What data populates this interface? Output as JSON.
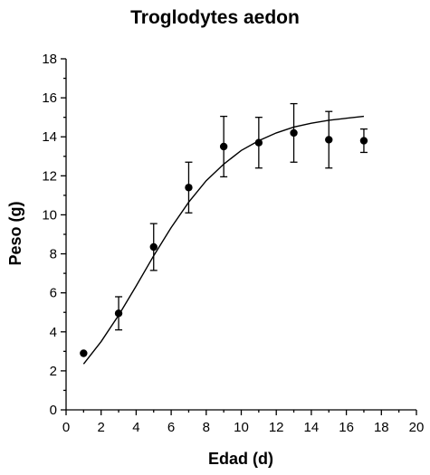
{
  "chart_data": {
    "type": "scatter",
    "title": "Troglodytes aedon",
    "xlabel": "Edad (d)",
    "ylabel": "Peso (g)",
    "xlim": [
      0,
      20
    ],
    "ylim": [
      0,
      18
    ],
    "x_ticks": [
      0,
      2,
      4,
      6,
      8,
      10,
      12,
      14,
      16,
      18,
      20
    ],
    "y_ticks": [
      0,
      2,
      4,
      6,
      8,
      10,
      12,
      14,
      16,
      18
    ],
    "grid": false,
    "series": [
      {
        "type": "scatter-errorbar",
        "points": [
          {
            "x": 1,
            "y": 2.9,
            "err": 0
          },
          {
            "x": 3,
            "y": 4.95,
            "err": 0.85
          },
          {
            "x": 5,
            "y": 8.35,
            "err": 1.2
          },
          {
            "x": 7,
            "y": 11.4,
            "err": 1.3
          },
          {
            "x": 9,
            "y": 13.5,
            "err": 1.55
          },
          {
            "x": 11,
            "y": 13.7,
            "err": 1.3
          },
          {
            "x": 13,
            "y": 14.2,
            "err": 1.5
          },
          {
            "x": 15,
            "y": 13.85,
            "err": 1.45
          },
          {
            "x": 17,
            "y": 13.8,
            "err": 0.6
          }
        ]
      },
      {
        "type": "line",
        "x": [
          1,
          2,
          3,
          4,
          5,
          6,
          7,
          8,
          9,
          10,
          11,
          12,
          13,
          14,
          15,
          16,
          17
        ],
        "y": [
          2.35,
          3.5,
          4.85,
          6.35,
          7.9,
          9.35,
          10.65,
          11.75,
          12.6,
          13.3,
          13.8,
          14.2,
          14.5,
          14.7,
          14.85,
          14.95,
          15.05
        ]
      }
    ]
  }
}
